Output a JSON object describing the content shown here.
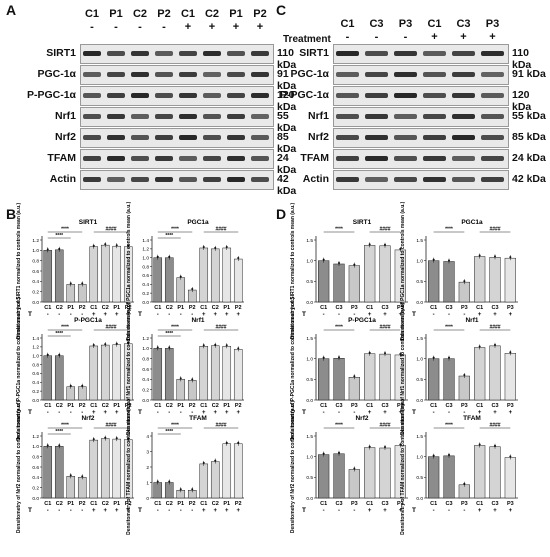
{
  "panels": {
    "a": "A",
    "b": "B",
    "c": "C",
    "d": "D"
  },
  "blot_a": {
    "lanes": [
      "C1",
      "P1",
      "C2",
      "P2",
      "C1",
      "C2",
      "P1",
      "P2"
    ],
    "signs": [
      "-",
      "-",
      "-",
      "-",
      "+",
      "+",
      "+",
      "+"
    ],
    "rows": [
      {
        "name": "SIRT1",
        "kda": "110 kDa"
      },
      {
        "name": "PGC-1α",
        "kda": "91 kDa"
      },
      {
        "name": "P-PGC-1α",
        "kda": "120 kDa"
      },
      {
        "name": "Nrf1",
        "kda": "55 kDa"
      },
      {
        "name": "Nrf2",
        "kda": "85 kDa"
      },
      {
        "name": "TFAM",
        "kda": "24 kDa"
      },
      {
        "name": "Actin",
        "kda": "42 kDa"
      }
    ]
  },
  "blot_c": {
    "treatment_label": "Treatment",
    "lanes": [
      "C1",
      "C3",
      "P3",
      "C1",
      "C3",
      "P3"
    ],
    "signs": [
      "-",
      "-",
      "-",
      "+",
      "+",
      "+"
    ],
    "rows": [
      {
        "name": "SIRT1",
        "kda": "110 kDa"
      },
      {
        "name": "PGC-1α",
        "kda": "91 kDa"
      },
      {
        "name": "P-PGC-1α",
        "kda": "120 kDa"
      },
      {
        "name": "Nrf1",
        "kda": "55 kDa"
      },
      {
        "name": "Nrf2",
        "kda": "85 kDa"
      },
      {
        "name": "TFAM",
        "kda": "24 kDa"
      },
      {
        "name": "Actin",
        "kda": "42 kDa"
      }
    ]
  },
  "chart_data": [
    {
      "type": "bar",
      "panel": "B",
      "title": "SIRT1",
      "ylabel": "Densitometry of SIRT1 normalized to controls mean (a.u.)",
      "categories": [
        "C1",
        "C2",
        "P1",
        "P2",
        "C1",
        "C2",
        "P1",
        "P2"
      ],
      "treatment": [
        "-",
        "-",
        "-",
        "-",
        "+",
        "+",
        "+",
        "+"
      ],
      "values": [
        1.0,
        1.01,
        0.34,
        0.34,
        1.07,
        1.1,
        1.08,
        1.07
      ],
      "ylim": [
        0,
        1.2
      ],
      "sig": [
        "****",
        "****",
        "####"
      ]
    },
    {
      "type": "bar",
      "panel": "B",
      "title": "PGC1a",
      "ylabel": "Densitometry of PGC1a normalized to controls mean (a.u.)",
      "categories": [
        "C1",
        "C2",
        "P1",
        "P2",
        "C1",
        "C2",
        "P1",
        "P2"
      ],
      "treatment": [
        "-",
        "-",
        "-",
        "-",
        "+",
        "+",
        "+",
        "+"
      ],
      "values": [
        1.0,
        1.0,
        0.55,
        0.27,
        1.22,
        1.2,
        1.22,
        0.97
      ],
      "ylim": [
        0,
        1.4
      ],
      "sig": [
        "****",
        "****",
        "####"
      ]
    },
    {
      "type": "bar",
      "panel": "B",
      "title": "P-PGC1a",
      "ylabel": "Densitometry of P-PGC1a normalized to controls mean (a.u.)",
      "categories": [
        "C1",
        "C2",
        "P1",
        "P2",
        "C1",
        "C2",
        "P1",
        "P2"
      ],
      "treatment": [
        "-",
        "-",
        "-",
        "-",
        "+",
        "+",
        "+",
        "+"
      ],
      "values": [
        1.0,
        1.0,
        0.3,
        0.3,
        1.22,
        1.24,
        1.25,
        1.27
      ],
      "ylim": [
        0,
        1.4
      ],
      "sig": [
        "****",
        "****",
        "####"
      ]
    },
    {
      "type": "bar",
      "panel": "B",
      "title": "Nrf1",
      "ylabel": "Densitometry of Nrf1 normalized to controls mean (a.u.)",
      "categories": [
        "C1",
        "C2",
        "P1",
        "P2",
        "C1",
        "C2",
        "P1",
        "P2"
      ],
      "treatment": [
        "-",
        "-",
        "-",
        "-",
        "+",
        "+",
        "+",
        "+"
      ],
      "values": [
        1.0,
        1.0,
        0.4,
        0.38,
        1.04,
        1.05,
        1.04,
        0.98
      ],
      "ylim": [
        0,
        1.2
      ],
      "sig": [
        "****",
        "****",
        "####"
      ]
    },
    {
      "type": "bar",
      "panel": "B",
      "title": "Nrf2",
      "ylabel": "Densitometry of Nrf2 normalized to controls mean (a.u.)",
      "categories": [
        "C1",
        "C2",
        "P1",
        "P2",
        "C1",
        "C2",
        "P1",
        "P2"
      ],
      "treatment": [
        "-",
        "-",
        "-",
        "-",
        "+",
        "+",
        "+",
        "+"
      ],
      "values": [
        1.0,
        1.0,
        0.42,
        0.4,
        1.12,
        1.15,
        1.14,
        1.13
      ],
      "ylim": [
        0,
        1.2
      ],
      "sig": [
        "****",
        "****",
        "####"
      ]
    },
    {
      "type": "bar",
      "panel": "B",
      "title": "TFAM",
      "ylabel": "Densitometry of TFAM normalized to controls mean (a.u.)",
      "categories": [
        "C1",
        "C2",
        "P1",
        "P2",
        "C1",
        "C2",
        "P1",
        "P2"
      ],
      "treatment": [
        "-",
        "-",
        "-",
        "-",
        "+",
        "+",
        "+",
        "+"
      ],
      "values": [
        1.0,
        1.0,
        0.5,
        0.5,
        2.2,
        2.35,
        3.5,
        3.5
      ],
      "ylim": [
        0,
        4
      ],
      "sig": [
        "****",
        "****",
        "####"
      ]
    },
    {
      "type": "bar",
      "panel": "D",
      "title": "SIRT1",
      "ylabel": "Densitometry of SIRT1 normalized to controls mean (a.u.)",
      "categories": [
        "C1",
        "C3",
        "P3",
        "C1",
        "C3",
        "P3"
      ],
      "treatment": [
        "-",
        "-",
        "-",
        "+",
        "+",
        "+"
      ],
      "values": [
        1.0,
        0.92,
        0.88,
        1.37,
        1.36,
        1.26
      ],
      "ylim": [
        0,
        1.5
      ],
      "sig": [
        "****",
        "####"
      ]
    },
    {
      "type": "bar",
      "panel": "D",
      "title": "PGC1a",
      "ylabel": "Densitometry of PGC1a normalized to controls mean (a.u.)",
      "categories": [
        "C1",
        "C3",
        "P3",
        "C1",
        "C3",
        "P3"
      ],
      "treatment": [
        "-",
        "-",
        "-",
        "+",
        "+",
        "+"
      ],
      "values": [
        1.0,
        0.98,
        0.48,
        1.1,
        1.08,
        1.06
      ],
      "ylim": [
        0,
        1.5
      ],
      "sig": [
        "****",
        "####"
      ]
    },
    {
      "type": "bar",
      "panel": "D",
      "title": "P-PGC1a",
      "ylabel": "Densitometry of P-PGC1a normalized to controls mean (a.u.)",
      "categories": [
        "C1",
        "C3",
        "P3",
        "C1",
        "C3",
        "P3"
      ],
      "treatment": [
        "-",
        "-",
        "-",
        "+",
        "+",
        "+"
      ],
      "values": [
        1.0,
        1.01,
        0.55,
        1.12,
        1.11,
        1.09
      ],
      "ylim": [
        0,
        1.5
      ],
      "sig": [
        "****",
        "####"
      ]
    },
    {
      "type": "bar",
      "panel": "D",
      "title": "Nrf1",
      "ylabel": "Densitometry of Nrf1 normalized to controls mean (a.u.)",
      "categories": [
        "C1",
        "C3",
        "P3",
        "C1",
        "C3",
        "P3"
      ],
      "treatment": [
        "-",
        "-",
        "-",
        "+",
        "+",
        "+"
      ],
      "values": [
        1.0,
        1.0,
        0.58,
        1.27,
        1.31,
        1.13
      ],
      "ylim": [
        0,
        1.5
      ],
      "sig": [
        "****",
        "####"
      ]
    },
    {
      "type": "bar",
      "panel": "D",
      "title": "Nrf2",
      "ylabel": "Densitometry of Nrf2 normalized to controls mean (a.u.)",
      "categories": [
        "C1",
        "C3",
        "P3",
        "C1",
        "C3",
        "P3"
      ],
      "treatment": [
        "-",
        "-",
        "-",
        "+",
        "+",
        "+"
      ],
      "values": [
        1.05,
        1.07,
        0.69,
        1.22,
        1.21,
        1.27
      ],
      "ylim": [
        0,
        1.5
      ],
      "sig": [
        "****",
        "####"
      ]
    },
    {
      "type": "bar",
      "panel": "D",
      "title": "TFAM",
      "ylabel": "Densitometry of TFAM normalized to controls mean (a.u.)",
      "categories": [
        "C1",
        "C3",
        "P3",
        "C1",
        "C3",
        "P3"
      ],
      "treatment": [
        "-",
        "-",
        "-",
        "+",
        "+",
        "+"
      ],
      "values": [
        1.0,
        1.02,
        0.32,
        1.27,
        1.24,
        0.98
      ],
      "ylim": [
        0,
        1.5
      ],
      "sig": [
        "****",
        "####"
      ]
    }
  ],
  "axis_common": {
    "t_label": "T"
  },
  "colors": {
    "control": "#888888",
    "patient": "#d8d8d8",
    "treated": "#cccccc",
    "bar_border": "#222222",
    "sig_line": "#222222"
  }
}
